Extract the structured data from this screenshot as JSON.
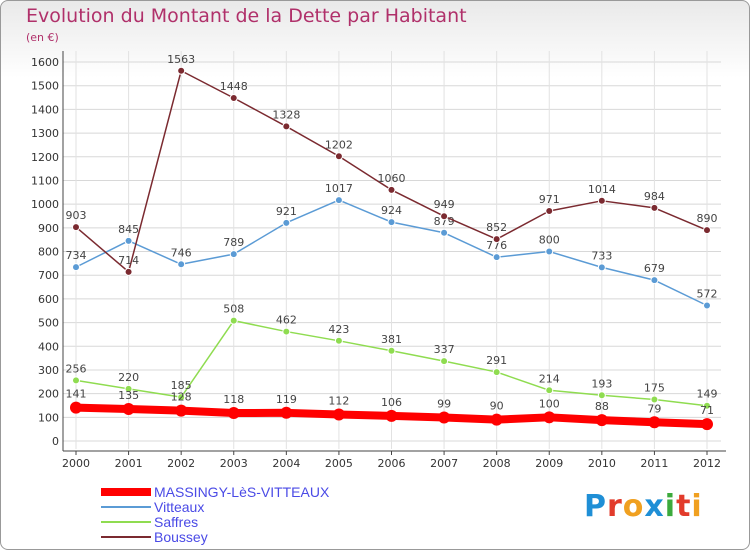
{
  "header": {
    "title": "Evolution du Montant de la Dette par Habitant",
    "subtitle": "(en €)"
  },
  "logo": {
    "text": "Proxiti",
    "colors": [
      "#1f8fd6",
      "#e23b2b",
      "#f0a020",
      "#1f8fd6",
      "#3caa3c",
      "#e23b2b",
      "#f0a020"
    ]
  },
  "chart_data": {
    "type": "line",
    "title": "Evolution du Montant de la Dette par Habitant",
    "subtitle": "(en €)",
    "xlabel": "",
    "ylabel": "",
    "x": [
      "2000",
      "2001",
      "2002",
      "2003",
      "2004",
      "2005",
      "2006",
      "2007",
      "2008",
      "2009",
      "2010",
      "2011",
      "2012"
    ],
    "ylim": [
      0,
      1600
    ],
    "yticks": [
      0,
      100,
      200,
      300,
      400,
      500,
      600,
      700,
      800,
      900,
      1000,
      1100,
      1200,
      1300,
      1400,
      1500,
      1600
    ],
    "grid": true,
    "legend_position": "bottom-left",
    "series": [
      {
        "name": "MASSINGY-LèS-VITTEAUX",
        "color": "#ff0000",
        "values": [
          141,
          135,
          128,
          118,
          119,
          112,
          106,
          99,
          90,
          100,
          88,
          79,
          71
        ]
      },
      {
        "name": "Vitteaux",
        "color": "#5b9bd5",
        "values": [
          734,
          845,
          746,
          789,
          921,
          1017,
          924,
          879,
          776,
          800,
          733,
          679,
          572
        ]
      },
      {
        "name": "Saffres",
        "color": "#8fdc50",
        "values": [
          256,
          220,
          185,
          508,
          462,
          423,
          381,
          337,
          291,
          214,
          193,
          175,
          149
        ]
      },
      {
        "name": "Boussey",
        "color": "#7b2a30",
        "values": [
          903,
          714,
          1563,
          1448,
          1328,
          1202,
          1060,
          949,
          852,
          971,
          1014,
          984,
          890
        ]
      }
    ]
  }
}
